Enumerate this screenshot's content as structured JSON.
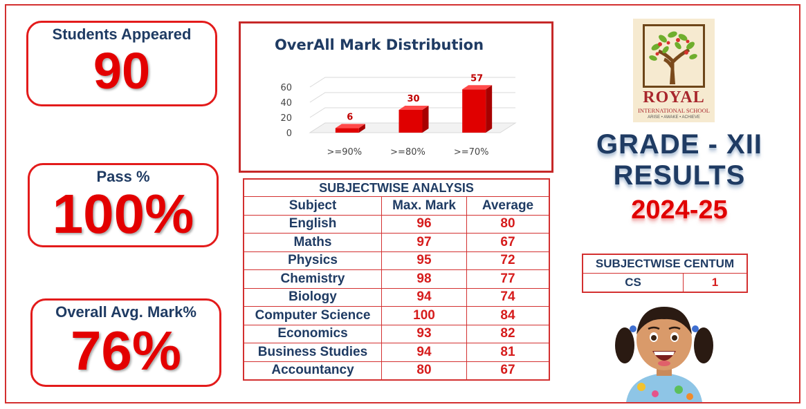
{
  "stats": {
    "students_label": "Students Appeared",
    "students_value": "90",
    "pass_label": "Pass %",
    "pass_value": "100%",
    "avg_label": "Overall Avg. Mark%",
    "avg_value": "76%"
  },
  "chart_data": {
    "type": "bar",
    "title": "OverAll Mark Distribution",
    "categories": [
      ">=90%",
      ">=80%",
      ">=70%"
    ],
    "values": [
      6,
      30,
      57
    ],
    "ylim": [
      0,
      60
    ],
    "yticks": [
      0,
      20,
      40,
      60
    ],
    "bar_color": "#e00000",
    "grid": true
  },
  "analysis": {
    "title": "SUBJECTWISE ANALYSIS",
    "headers": [
      "Subject",
      "Max. Mark",
      "Average"
    ],
    "rows": [
      [
        "English",
        "96",
        "80"
      ],
      [
        "Maths",
        "97",
        "67"
      ],
      [
        "Physics",
        "95",
        "72"
      ],
      [
        "Chemistry",
        "98",
        "77"
      ],
      [
        "Biology",
        "94",
        "74"
      ],
      [
        "Computer Science",
        "100",
        "84"
      ],
      [
        "Economics",
        "93",
        "82"
      ],
      [
        "Business Studies",
        "94",
        "81"
      ],
      [
        "Accountancy",
        "80",
        "67"
      ]
    ]
  },
  "logo": {
    "name": "ROYAL",
    "subtitle": "INTERNATIONAL SCHOOL",
    "motto": "ARISE • AWAKE • ACHIEVE"
  },
  "heading": {
    "line1": "GRADE - XII",
    "line2": "RESULTS",
    "year": "2024-25"
  },
  "centum": {
    "title": "SUBJECTWISE CENTUM",
    "subject": "CS",
    "count": "1"
  },
  "colors": {
    "accent_red": "#e30000",
    "navy": "#1f3b63",
    "border_red": "#d32f2f"
  }
}
